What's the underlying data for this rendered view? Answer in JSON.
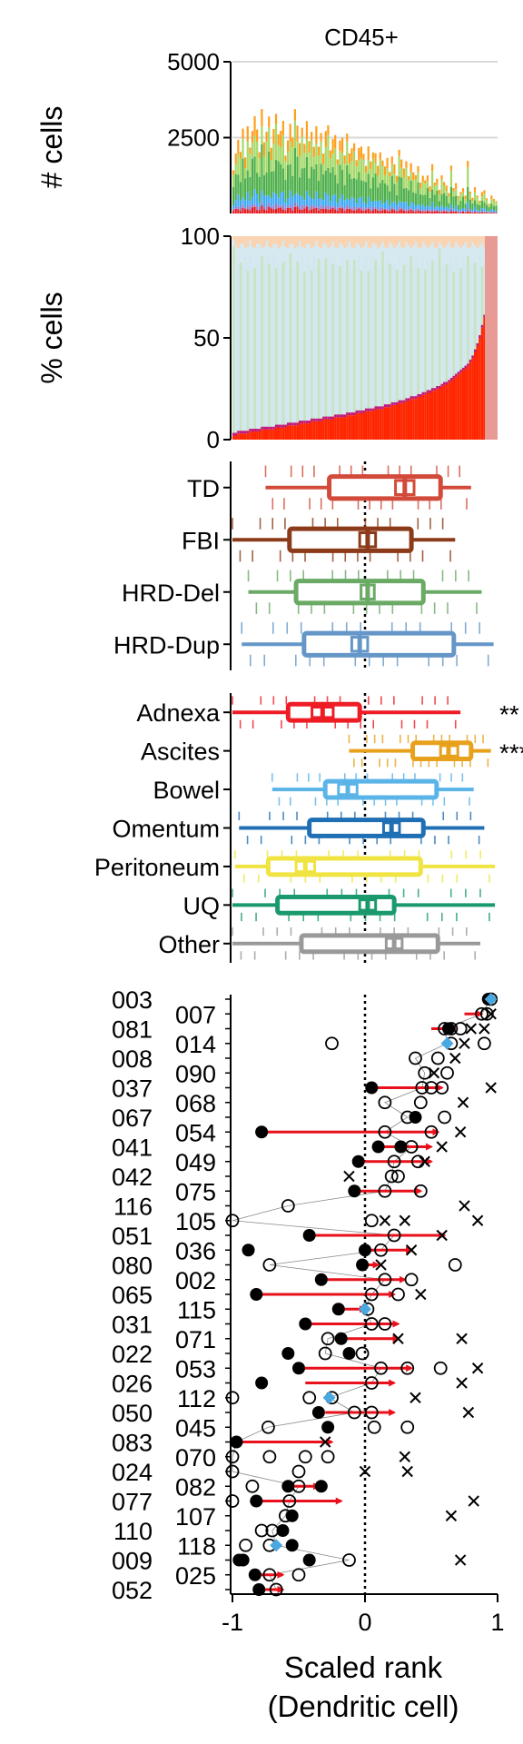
{
  "chart_data": [
    {
      "type": "bar",
      "title": "CD45+",
      "ylabel": "# cells",
      "ylim": [
        0,
        5000
      ],
      "yticks": [
        2500,
        5000
      ],
      "grid": true,
      "stack_colors": [
        "#e41a1c",
        "#9e79c2",
        "#3fa9f5",
        "#4daf4a",
        "#a6d96a",
        "#ff9f1c"
      ],
      "stack_fractions": [
        0.06,
        0.04,
        0.12,
        0.36,
        0.27,
        0.15
      ],
      "totals": [
        1400,
        1900,
        2500,
        2100,
        2700,
        1800,
        3000,
        2200,
        2600,
        3200,
        2900,
        2000,
        3300,
        2400,
        2800,
        3100,
        2100,
        2900,
        3350,
        2500,
        2700,
        3200,
        1900,
        2300,
        3000,
        2600,
        3350,
        2800,
        2400,
        2900,
        2200,
        3000,
        2500,
        2700,
        2100,
        2900,
        2300,
        2600,
        1900,
        2800,
        3000,
        2000,
        2400,
        2700,
        1800,
        2300,
        2500,
        2000,
        2600,
        1900,
        2200,
        2400,
        1700,
        2100,
        2300,
        2000,
        1500,
        2200,
        1800,
        2000,
        1900,
        1600,
        2100,
        1700,
        1500,
        1900,
        1400,
        1800,
        1600,
        1300,
        2100,
        1700,
        1500,
        1800,
        1200,
        1600,
        1400,
        1300,
        1500,
        1000,
        1300,
        1100,
        1200,
        900,
        1700,
        1000,
        1100,
        800,
        1300,
        1000,
        900,
        700,
        1600,
        800,
        1000,
        600,
        700,
        800,
        600,
        1800,
        700,
        500,
        900,
        600,
        400,
        700,
        800,
        500,
        300,
        600,
        500,
        400
      ]
    },
    {
      "type": "bar",
      "ylabel": "% cells",
      "ylim": [
        0,
        100
      ],
      "yticks": [
        0,
        50,
        100
      ],
      "stacked": true,
      "bottom_color": "#ff2600",
      "bottom_pct": [
        2,
        2,
        3,
        3,
        3,
        3,
        3,
        4,
        4,
        4,
        4,
        4,
        5,
        5,
        5,
        5,
        5,
        5,
        6,
        6,
        6,
        6,
        6,
        7,
        7,
        7,
        7,
        7,
        8,
        8,
        8,
        8,
        8,
        9,
        9,
        9,
        9,
        9,
        10,
        10,
        10,
        10,
        10,
        11,
        11,
        11,
        11,
        11,
        12,
        12,
        12,
        12,
        13,
        13,
        13,
        13,
        14,
        14,
        14,
        14,
        15,
        15,
        15,
        15,
        16,
        16,
        16,
        17,
        17,
        17,
        18,
        18,
        18,
        19,
        19,
        20,
        20,
        20,
        21,
        21,
        22,
        22,
        23,
        23,
        24,
        24,
        25,
        25,
        26,
        27,
        27,
        28,
        29,
        30,
        31,
        32,
        33,
        34,
        35,
        36,
        38,
        40,
        43,
        46,
        50,
        55,
        60,
        67,
        74,
        82,
        92,
        98
      ]
    },
    {
      "type": "box",
      "ylabels": [
        "TD",
        "FBI",
        "HRD-Del",
        "HRD-Dup"
      ],
      "xlim": [
        -1,
        1
      ],
      "boxes": [
        {
          "label": "TD",
          "color": "#d24b3a",
          "whisker_low": -0.75,
          "q1": -0.27,
          "median": 0.3,
          "q3": 0.57,
          "whisker_high": 0.8,
          "ci": [
            0.23,
            0.37
          ]
        },
        {
          "label": "FBI",
          "color": "#8b3a1a",
          "whisker_low": -1.0,
          "q1": -0.57,
          "median": 0.02,
          "q3": 0.35,
          "whisker_high": 0.68,
          "ci": [
            -0.04,
            0.08
          ]
        },
        {
          "label": "HRD-Del",
          "color": "#6aaa64",
          "whisker_low": -0.88,
          "q1": -0.52,
          "median": 0.02,
          "q3": 0.44,
          "whisker_high": 0.88,
          "ci": [
            -0.03,
            0.07
          ]
        },
        {
          "label": "HRD-Dup",
          "color": "#6596c8",
          "whisker_low": -0.93,
          "q1": -0.46,
          "median": -0.04,
          "q3": 0.67,
          "whisker_high": 0.97,
          "ci": [
            -0.1,
            0.02
          ]
        }
      ]
    },
    {
      "type": "box",
      "ylabels": [
        "Adnexa",
        "Ascites",
        "Bowel",
        "Omentum",
        "Peritoneum",
        "UQ",
        "Other"
      ],
      "xlim": [
        -1,
        1
      ],
      "annotations": [
        {
          "label": "Adnexa",
          "text": "**"
        },
        {
          "label": "Ascites",
          "text": "***"
        }
      ],
      "boxes": [
        {
          "label": "Adnexa",
          "color": "#ee1c25",
          "whisker_low": -1.0,
          "q1": -0.58,
          "median": -0.32,
          "q3": -0.04,
          "whisker_high": 0.72,
          "ci": [
            -0.4,
            -0.24
          ]
        },
        {
          "label": "Ascites",
          "color": "#e8a11c",
          "whisker_low": -0.12,
          "q1": 0.36,
          "median": 0.63,
          "q3": 0.8,
          "whisker_high": 0.95,
          "ci": [
            0.57,
            0.7
          ]
        },
        {
          "label": "Bowel",
          "color": "#5ab4e8",
          "whisker_low": -0.7,
          "q1": -0.3,
          "median": -0.13,
          "q3": 0.54,
          "whisker_high": 0.82,
          "ci": [
            -0.2,
            -0.06
          ]
        },
        {
          "label": "Omentum",
          "color": "#1f6fb5",
          "whisker_low": -0.95,
          "q1": -0.42,
          "median": 0.2,
          "q3": 0.44,
          "whisker_high": 0.9,
          "ci": [
            0.14,
            0.26
          ]
        },
        {
          "label": "Peritoneum",
          "color": "#f0e442",
          "whisker_low": -0.98,
          "q1": -0.73,
          "median": -0.45,
          "q3": 0.42,
          "whisker_high": 0.98,
          "ci": [
            -0.52,
            -0.38
          ]
        },
        {
          "label": "UQ",
          "color": "#1a9a6c",
          "whisker_low": -1.0,
          "q1": -0.66,
          "median": 0.02,
          "q3": 0.22,
          "whisker_high": 0.98,
          "ci": [
            -0.04,
            0.08
          ]
        },
        {
          "label": "Other",
          "color": "#999999",
          "whisker_low": -1.0,
          "q1": -0.48,
          "median": 0.22,
          "q3": 0.55,
          "whisker_high": 0.87,
          "ci": [
            0.16,
            0.28
          ]
        }
      ]
    },
    {
      "type": "scatter",
      "xlabel": "Scaled rank",
      "xlabel2": "(Dendritic cell)",
      "xlim": [
        -1,
        1
      ],
      "xticks": [
        "-1",
        "0",
        "1"
      ],
      "patients": [
        "003",
        "007",
        "081",
        "014",
        "008",
        "090",
        "037",
        "068",
        "067",
        "054",
        "041",
        "049",
        "042",
        "075",
        "116",
        "105",
        "051",
        "036",
        "080",
        "002",
        "065",
        "115",
        "031",
        "071",
        "022",
        "053",
        "026",
        "112",
        "050",
        "045",
        "083",
        "070",
        "024",
        "082",
        "077",
        "107",
        "110",
        "118",
        "009",
        "025",
        "052"
      ],
      "rows": [
        {
          "id": "003",
          "filled": [
            0.93
          ],
          "open": [
            0.95
          ],
          "cross": [],
          "diamond": 0.95,
          "arrow": null
        },
        {
          "id": "007",
          "filled": [],
          "open": [
            0.88,
            0.92
          ],
          "cross": [
            0.95
          ],
          "diamond": null,
          "arrow": [
            0.75,
            0.88
          ]
        },
        {
          "id": "081",
          "filled": [
            0.63
          ],
          "open": [
            0.6,
            0.65,
            0.72
          ],
          "cross": [
            0.8,
            0.9
          ],
          "diamond": null,
          "arrow": [
            0.5,
            0.68
          ]
        },
        {
          "id": "014",
          "filled": [],
          "open": [
            -0.25,
            0.65,
            0.9
          ],
          "cross": [
            0.75
          ],
          "diamond": 0.62,
          "arrow": null
        },
        {
          "id": "008",
          "filled": [],
          "open": [
            0.38,
            0.55
          ],
          "cross": [
            0.68
          ],
          "diamond": null,
          "arrow": null
        },
        {
          "id": "090",
          "filled": [],
          "open": [
            0.45,
            0.62
          ],
          "cross": [
            0.52
          ],
          "diamond": null,
          "arrow": null
        },
        {
          "id": "037",
          "filled": [
            0.05
          ],
          "open": [
            0.43,
            0.5,
            0.58
          ],
          "cross": [
            0.95
          ],
          "diamond": null,
          "arrow": [
            0.05,
            0.58
          ]
        },
        {
          "id": "068",
          "filled": [],
          "open": [
            0.15,
            0.42
          ],
          "cross": [
            0.74
          ],
          "diamond": null,
          "arrow": null
        },
        {
          "id": "067",
          "filled": [
            0.38
          ],
          "open": [
            0.32,
            0.6
          ],
          "cross": [],
          "diamond": null,
          "arrow": null
        },
        {
          "id": "054",
          "filled": [
            -0.78
          ],
          "open": [
            0.15,
            0.5
          ],
          "cross": [
            0.72
          ],
          "diamond": null,
          "arrow": [
            -0.78,
            0.55
          ]
        },
        {
          "id": "041",
          "filled": [
            0.1,
            0.27
          ],
          "open": [
            0.35
          ],
          "cross": [
            0.58
          ],
          "diamond": null,
          "arrow": [
            0.1,
            0.5
          ]
        },
        {
          "id": "049",
          "filled": [
            -0.05
          ],
          "open": [
            0.22,
            0.4
          ],
          "cross": [
            0.45
          ],
          "diamond": null,
          "arrow": [
            -0.05,
            0.5
          ]
        },
        {
          "id": "042",
          "filled": [],
          "open": [
            0.2,
            0.25
          ],
          "cross": [
            -0.12
          ],
          "diamond": null,
          "arrow": null
        },
        {
          "id": "075",
          "filled": [
            -0.08
          ],
          "open": [
            0.15,
            0.42
          ],
          "cross": [],
          "diamond": null,
          "arrow": [
            -0.08,
            0.42
          ]
        },
        {
          "id": "116",
          "filled": [],
          "open": [
            -0.58
          ],
          "cross": [
            0.75
          ],
          "diamond": null,
          "arrow": null
        },
        {
          "id": "105",
          "filled": [],
          "open": [
            -1.0,
            0.05
          ],
          "cross": [
            0.15,
            0.3,
            0.85
          ],
          "diamond": null,
          "arrow": null
        },
        {
          "id": "051",
          "filled": [
            -0.42
          ],
          "open": [
            0.22
          ],
          "cross": [
            0.58
          ],
          "diamond": null,
          "arrow": [
            -0.42,
            0.6
          ]
        },
        {
          "id": "036",
          "filled": [
            -0.88,
            0.0
          ],
          "open": [
            0.12
          ],
          "cross": [
            0.35
          ],
          "diamond": null,
          "arrow": [
            0.0,
            0.35
          ]
        },
        {
          "id": "080",
          "filled": [
            -0.02
          ],
          "open": [
            -0.72,
            0.68
          ],
          "cross": [
            0.12
          ],
          "diamond": null,
          "arrow": [
            -0.02,
            0.1
          ]
        },
        {
          "id": "002",
          "filled": [
            -0.33
          ],
          "open": [
            0.15,
            0.35
          ],
          "cross": [],
          "diamond": null,
          "arrow": [
            -0.33,
            0.3
          ]
        },
        {
          "id": "065",
          "filled": [
            -0.82
          ],
          "open": [
            0.05,
            0.25
          ],
          "cross": [
            0.42
          ],
          "diamond": null,
          "arrow": [
            -0.82,
            0.22
          ]
        },
        {
          "id": "115",
          "filled": [
            -0.2
          ],
          "open": [
            0.02
          ],
          "cross": [],
          "diamond": 0.0,
          "arrow": [
            -0.2,
            0.0
          ]
        },
        {
          "id": "031",
          "filled": [
            -0.45
          ],
          "open": [
            0.05,
            0.15
          ],
          "cross": [],
          "diamond": null,
          "arrow": [
            -0.45,
            0.25
          ]
        },
        {
          "id": "071",
          "filled": [
            -0.18
          ],
          "open": [
            -0.28
          ],
          "cross": [
            0.25,
            0.73
          ],
          "diamond": null,
          "arrow": [
            -0.18,
            0.25
          ]
        },
        {
          "id": "022",
          "filled": [
            -0.58,
            -0.12
          ],
          "open": [
            -0.3,
            -0.02
          ],
          "cross": [],
          "diamond": null,
          "arrow": null
        },
        {
          "id": "053",
          "filled": [
            -0.5
          ],
          "open": [
            0.12,
            0.32,
            0.57
          ],
          "cross": [
            0.85
          ],
          "diamond": null,
          "arrow": [
            -0.5,
            0.35
          ]
        },
        {
          "id": "026",
          "filled": [
            -0.78
          ],
          "open": [
            0.05
          ],
          "cross": [
            0.73
          ],
          "diamond": null,
          "arrow": [
            -0.45,
            0.22
          ]
        },
        {
          "id": "112",
          "filled": [],
          "open": [
            -1.0,
            -0.42,
            -0.25
          ],
          "cross": [
            0.38
          ],
          "diamond": -0.27,
          "arrow": null
        },
        {
          "id": "050",
          "filled": [
            -0.35
          ],
          "open": [
            -0.08,
            0.05
          ],
          "cross": [
            0.78
          ],
          "diamond": null,
          "arrow": [
            -0.3,
            0.22
          ]
        },
        {
          "id": "045",
          "filled": [
            -0.28
          ],
          "open": [
            -0.73,
            0.07,
            0.32
          ],
          "cross": [],
          "diamond": null,
          "arrow": null
        },
        {
          "id": "083",
          "filled": [
            -0.97
          ],
          "open": [],
          "cross": [
            -0.3
          ],
          "diamond": null,
          "arrow": [
            -0.97,
            -0.25
          ]
        },
        {
          "id": "070",
          "filled": [],
          "open": [
            -1.0,
            -0.72,
            -0.45,
            -0.28
          ],
          "cross": [
            0.3
          ],
          "diamond": null,
          "arrow": null
        },
        {
          "id": "024",
          "filled": [],
          "open": [
            -1.0,
            -0.5
          ],
          "cross": [
            0.0,
            0.32
          ],
          "diamond": null,
          "arrow": null
        },
        {
          "id": "082",
          "filled": [
            -0.58,
            -0.33
          ],
          "open": [
            -0.5,
            -0.85
          ],
          "cross": [],
          "diamond": null,
          "arrow": [
            -0.58,
            -0.35
          ]
        },
        {
          "id": "077",
          "filled": [
            -0.82
          ],
          "open": [
            -0.57,
            -1.0
          ],
          "cross": [
            0.82
          ],
          "diamond": null,
          "arrow": [
            -0.82,
            -0.18
          ]
        },
        {
          "id": "107",
          "filled": [
            -0.55
          ],
          "open": [
            -0.6
          ],
          "cross": [
            0.65
          ],
          "diamond": null,
          "arrow": null
        },
        {
          "id": "110",
          "filled": [
            -0.62
          ],
          "open": [
            -0.7,
            -0.78
          ],
          "cross": [],
          "diamond": null,
          "arrow": null
        },
        {
          "id": "118",
          "filled": [
            -0.55
          ],
          "open": [
            -0.72,
            -0.9
          ],
          "cross": [],
          "diamond": -0.67,
          "arrow": null
        },
        {
          "id": "009",
          "filled": [
            -0.92,
            -0.95,
            -0.42
          ],
          "open": [
            -0.12
          ],
          "cross": [
            0.72
          ],
          "diamond": null,
          "arrow": null
        },
        {
          "id": "025",
          "filled": [
            -0.83
          ],
          "open": [
            -0.72,
            -0.5
          ],
          "cross": [],
          "diamond": null,
          "arrow": [
            -0.83,
            -0.62
          ]
        },
        {
          "id": "052",
          "filled": [
            -0.8
          ],
          "open": [
            -0.67
          ],
          "cross": [],
          "diamond": null,
          "arrow": [
            -0.8,
            -0.62
          ]
        }
      ]
    }
  ]
}
